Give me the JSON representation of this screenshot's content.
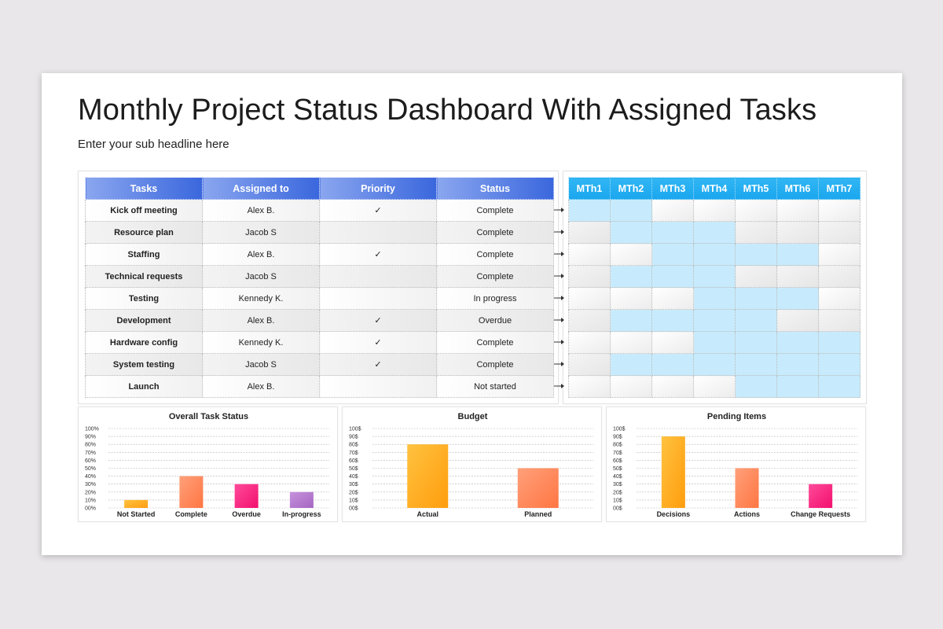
{
  "title": "Monthly Project Status Dashboard With Assigned Tasks",
  "subtitle": "Enter your sub headline here",
  "tasks_table": {
    "headers": [
      "Tasks",
      "Assigned to",
      "Priority",
      "Status"
    ],
    "rows": [
      {
        "task": "Kick off meeting",
        "assigned": "Alex B.",
        "priority": "✓",
        "status": "Complete"
      },
      {
        "task": "Resource plan",
        "assigned": "Jacob S",
        "priority": "",
        "status": "Complete"
      },
      {
        "task": "Staffing",
        "assigned": "Alex B.",
        "priority": "✓",
        "status": "Complete"
      },
      {
        "task": "Technical requests",
        "assigned": "Jacob S",
        "priority": "",
        "status": "Complete"
      },
      {
        "task": "Testing",
        "assigned": "Kennedy K.",
        "priority": "",
        "status": "In progress"
      },
      {
        "task": "Development",
        "assigned": "Alex B.",
        "priority": "✓",
        "status": "Overdue"
      },
      {
        "task": "Hardware config",
        "assigned": "Kennedy K.",
        "priority": "✓",
        "status": "Complete"
      },
      {
        "task": "System testing",
        "assigned": "Jacob S",
        "priority": "✓",
        "status": "Complete"
      },
      {
        "task": "Launch",
        "assigned": "Alex B.",
        "priority": "",
        "status": "Not started"
      }
    ]
  },
  "gantt": {
    "months": [
      "MTh1",
      "MTh2",
      "MTh3",
      "MTh4",
      "MTh5",
      "MTh6",
      "MTh7"
    ],
    "highlight_color": "#c7ebfc",
    "schedule": [
      [
        1,
        1,
        0,
        0,
        0,
        0,
        0
      ],
      [
        0,
        1,
        1,
        1,
        0,
        0,
        0
      ],
      [
        0,
        0,
        1,
        1,
        1,
        1,
        0
      ],
      [
        0,
        1,
        1,
        1,
        0,
        0,
        0
      ],
      [
        0,
        0,
        0,
        1,
        1,
        1,
        0
      ],
      [
        0,
        1,
        1,
        1,
        1,
        0,
        0
      ],
      [
        0,
        0,
        0,
        1,
        1,
        1,
        1
      ],
      [
        0,
        1,
        1,
        1,
        1,
        1,
        1
      ],
      [
        0,
        0,
        0,
        0,
        1,
        1,
        1
      ]
    ]
  },
  "colors": {
    "header_gradient": [
      "#8aa6ef",
      "#3a67dd"
    ],
    "gantt_header": "#1aa6ee",
    "bar_yellow": [
      "#ffc23f",
      "#ff9d0e"
    ],
    "bar_orange": [
      "#ffa07a",
      "#ff7643"
    ],
    "bar_pink": [
      "#ff4a9a",
      "#f2106e"
    ],
    "bar_purple": [
      "#c792dc",
      "#a466c2"
    ]
  },
  "chart_data": [
    {
      "type": "bar",
      "title": "Overall Task Status",
      "categories": [
        "Not Started",
        "Complete",
        "Overdue",
        "In-progress"
      ],
      "values": [
        10,
        40,
        30,
        20
      ],
      "ylim": [
        0,
        100
      ],
      "yticks": [
        "100%",
        "90%",
        "80%",
        "70%",
        "60%",
        "50%",
        "40%",
        "30%",
        "20%",
        "10%",
        "00%"
      ],
      "bar_colors": [
        "yellow",
        "orange",
        "pink",
        "purple"
      ],
      "grid": true
    },
    {
      "type": "bar",
      "title": "Budget",
      "categories": [
        "Actual",
        "Planned"
      ],
      "values": [
        80,
        50
      ],
      "ylim": [
        0,
        100
      ],
      "yticks": [
        "100$",
        "90$",
        "80$",
        "70$",
        "60$",
        "50$",
        "40$",
        "30$",
        "20$",
        "10$",
        "00$"
      ],
      "bar_colors": [
        "yellow",
        "orange"
      ],
      "grid": true
    },
    {
      "type": "bar",
      "title": "Pending Items",
      "categories": [
        "Decisions",
        "Actions",
        "Change Requests"
      ],
      "values": [
        90,
        50,
        30
      ],
      "ylim": [
        0,
        100
      ],
      "yticks": [
        "100$",
        "90$",
        "80$",
        "70$",
        "60$",
        "50$",
        "40$",
        "30$",
        "20$",
        "10$",
        "00$"
      ],
      "bar_colors": [
        "yellow",
        "orange",
        "pink"
      ],
      "grid": true
    }
  ]
}
